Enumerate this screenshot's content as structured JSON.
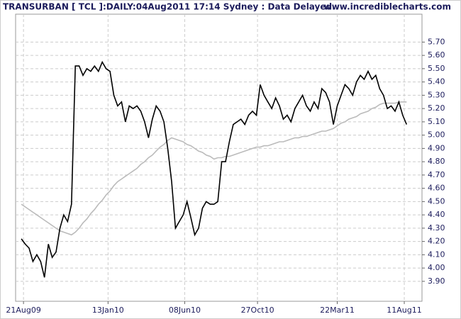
{
  "chart_data": {
    "type": "line",
    "title": "TRANSURBAN [ TCL ]:DAILY:04Aug2011 17:14 Sydney : Data Delayed..",
    "source": "www.incrediblecharts.com",
    "grid": true,
    "xlim": [
      -1.5,
      104
    ],
    "xticks": [
      {
        "value": 0.55,
        "label": "21Aug09"
      },
      {
        "value": 22.5,
        "label": "13Jan10"
      },
      {
        "value": 42.4,
        "label": "08Jun10"
      },
      {
        "value": 61.3,
        "label": "27Oct10"
      },
      {
        "value": 82,
        "label": "22Mar11"
      },
      {
        "value": 99.4,
        "label": "11Aug11"
      }
    ],
    "ylim": [
      3.75,
      5.91
    ],
    "yticks": [
      {
        "value": 3.9,
        "label": "3.90"
      },
      {
        "value": 4.0,
        "label": "4.00"
      },
      {
        "value": 4.1,
        "label": "4.10"
      },
      {
        "value": 4.2,
        "label": "4.20"
      },
      {
        "value": 4.3,
        "label": "4.30"
      },
      {
        "value": 4.4,
        "label": "4.40"
      },
      {
        "value": 4.5,
        "label": "4.50"
      },
      {
        "value": 4.6,
        "label": "4.60"
      },
      {
        "value": 4.7,
        "label": "4.70"
      },
      {
        "value": 4.8,
        "label": "4.80"
      },
      {
        "value": 4.9,
        "label": "4.90"
      },
      {
        "value": 5.0,
        "label": "5.00"
      },
      {
        "value": 5.1,
        "label": "5.10"
      },
      {
        "value": 5.2,
        "label": "5.20"
      },
      {
        "value": 5.3,
        "label": "5.30"
      },
      {
        "value": 5.4,
        "label": "5.40"
      },
      {
        "value": 5.5,
        "label": "5.50"
      },
      {
        "value": 5.6,
        "label": "5.60"
      },
      {
        "value": 5.7,
        "label": "5.70"
      }
    ],
    "series": [
      {
        "color": "#bbbbbb",
        "values": [
          4.48,
          4.46,
          4.44,
          4.42,
          4.4,
          4.38,
          4.36,
          4.34,
          4.32,
          4.3,
          4.28,
          4.27,
          4.26,
          4.25,
          4.27,
          4.3,
          4.34,
          4.37,
          4.41,
          4.44,
          4.48,
          4.51,
          4.55,
          4.58,
          4.62,
          4.65,
          4.67,
          4.69,
          4.71,
          4.73,
          4.75,
          4.78,
          4.8,
          4.83,
          4.85,
          4.88,
          4.91,
          4.93,
          4.96,
          4.98,
          4.97,
          4.96,
          4.95,
          4.93,
          4.92,
          4.9,
          4.88,
          4.87,
          4.85,
          4.84,
          4.82,
          4.83,
          4.83,
          4.84,
          4.84,
          4.85,
          4.86,
          4.87,
          4.88,
          4.89,
          4.9,
          4.91,
          4.91,
          4.92,
          4.92,
          4.93,
          4.94,
          4.95,
          4.95,
          4.96,
          4.97,
          4.98,
          4.98,
          4.99,
          4.99,
          5.0,
          5.01,
          5.02,
          5.03,
          5.03,
          5.04,
          5.05,
          5.07,
          5.09,
          5.1,
          5.12,
          5.13,
          5.14,
          5.16,
          5.17,
          5.18,
          5.2,
          5.21,
          5.23,
          5.24,
          5.24,
          5.24,
          5.24,
          5.25,
          5.25,
          5.25
        ]
      },
      {
        "color": "#000000",
        "values": [
          4.22,
          4.18,
          4.15,
          4.05,
          4.1,
          4.05,
          3.93,
          4.18,
          4.08,
          4.12,
          4.3,
          4.4,
          4.35,
          4.48,
          5.52,
          5.52,
          5.45,
          5.5,
          5.48,
          5.52,
          5.48,
          5.55,
          5.5,
          5.48,
          5.3,
          5.22,
          5.25,
          5.1,
          5.22,
          5.2,
          5.22,
          5.18,
          5.1,
          4.98,
          5.12,
          5.22,
          5.18,
          5.1,
          4.9,
          4.65,
          4.3,
          4.35,
          4.4,
          4.5,
          4.38,
          4.25,
          4.3,
          4.45,
          4.5,
          4.48,
          4.48,
          4.5,
          4.8,
          4.8,
          4.95,
          5.08,
          5.1,
          5.12,
          5.08,
          5.15,
          5.18,
          5.15,
          5.38,
          5.3,
          5.25,
          5.2,
          5.28,
          5.22,
          5.12,
          5.15,
          5.1,
          5.2,
          5.25,
          5.3,
          5.22,
          5.18,
          5.25,
          5.2,
          5.35,
          5.32,
          5.25,
          5.08,
          5.22,
          5.3,
          5.38,
          5.35,
          5.3,
          5.4,
          5.45,
          5.42,
          5.48,
          5.42,
          5.45,
          5.35,
          5.3,
          5.2,
          5.22,
          5.18,
          5.25,
          5.15,
          5.08
        ]
      }
    ]
  }
}
